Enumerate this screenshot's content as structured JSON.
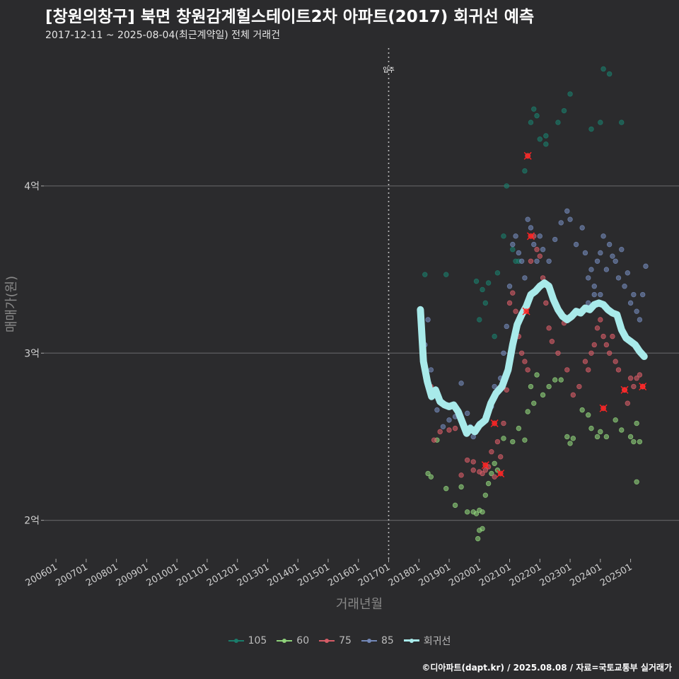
{
  "title": "[창원의창구] 북면 창원감계힐스테이트2차 아파트(2017) 회귀선 예측",
  "subtitle": "2017-12-11 ~ 2025-08-04(최근계약일) 전체 거래건",
  "footer": "©디아파트(dapt.kr) / 2025.08.08 / 자료=국토교통부 실거래가",
  "legend": [
    {
      "label": "105",
      "color": "#1a7d6b"
    },
    {
      "label": "60",
      "color": "#8fd27a"
    },
    {
      "label": "75",
      "color": "#d65c66"
    },
    {
      "label": "85",
      "color": "#7388b8"
    },
    {
      "label": "회귀선",
      "color": "#a8eaea"
    }
  ],
  "chart_data": {
    "type": "scatter",
    "title": "[창원의창구] 북면 창원감계힐스테이트2차 아파트(2017) 회귀선 예측",
    "xlabel": "거래년월",
    "ylabel": "매매가(원)",
    "x_ticks": [
      "200601",
      "200701",
      "200801",
      "200901",
      "201001",
      "201101",
      "201201",
      "201301",
      "201401",
      "201501",
      "201601",
      "201701",
      "201801",
      "201901",
      "202001",
      "202101",
      "202201",
      "202301",
      "202401",
      "202501"
    ],
    "y_ticks": [
      {
        "value": 2,
        "label": "2억"
      },
      {
        "value": 3,
        "label": "3억"
      },
      {
        "value": 4,
        "label": "4억"
      }
    ],
    "xlim": [
      2005.6,
      2026.6
    ],
    "ylim": [
      1.77,
      4.85
    ],
    "y_unit": "억원",
    "annotation": {
      "x": 2017.0,
      "label": "입주"
    },
    "regression": {
      "name": "회귀선",
      "color": "#a8eaea",
      "points": [
        [
          2018.05,
          3.26
        ],
        [
          2018.15,
          2.95
        ],
        [
          2018.28,
          2.83
        ],
        [
          2018.42,
          2.74
        ],
        [
          2018.55,
          2.78
        ],
        [
          2018.7,
          2.71
        ],
        [
          2018.85,
          2.69
        ],
        [
          2019.0,
          2.68
        ],
        [
          2019.15,
          2.69
        ],
        [
          2019.3,
          2.65
        ],
        [
          2019.45,
          2.58
        ],
        [
          2019.58,
          2.52
        ],
        [
          2019.7,
          2.55
        ],
        [
          2019.85,
          2.53
        ],
        [
          2020.0,
          2.57
        ],
        [
          2020.2,
          2.6
        ],
        [
          2020.38,
          2.7
        ],
        [
          2020.55,
          2.76
        ],
        [
          2020.75,
          2.8
        ],
        [
          2020.95,
          2.9
        ],
        [
          2021.1,
          3.05
        ],
        [
          2021.25,
          3.17
        ],
        [
          2021.4,
          3.23
        ],
        [
          2021.55,
          3.28
        ],
        [
          2021.7,
          3.35
        ],
        [
          2021.85,
          3.37
        ],
        [
          2022.0,
          3.4
        ],
        [
          2022.15,
          3.42
        ],
        [
          2022.3,
          3.4
        ],
        [
          2022.45,
          3.32
        ],
        [
          2022.6,
          3.26
        ],
        [
          2022.75,
          3.22
        ],
        [
          2022.9,
          3.2
        ],
        [
          2023.05,
          3.22
        ],
        [
          2023.2,
          3.25
        ],
        [
          2023.35,
          3.24
        ],
        [
          2023.5,
          3.27
        ],
        [
          2023.65,
          3.26
        ],
        [
          2023.8,
          3.29
        ],
        [
          2023.95,
          3.3
        ],
        [
          2024.1,
          3.29
        ],
        [
          2024.25,
          3.26
        ],
        [
          2024.4,
          3.24
        ],
        [
          2024.55,
          3.23
        ],
        [
          2024.7,
          3.14
        ],
        [
          2024.85,
          3.09
        ],
        [
          2025.0,
          3.07
        ],
        [
          2025.15,
          3.05
        ],
        [
          2025.3,
          3.01
        ],
        [
          2025.45,
          2.98
        ]
      ]
    },
    "series": [
      {
        "name": "105",
        "color": "#1a7d6b",
        "points": [
          [
            2018.2,
            3.47
          ],
          [
            2018.9,
            3.47
          ],
          [
            2019.9,
            3.43
          ],
          [
            2020.1,
            3.38
          ],
          [
            2020.3,
            3.42
          ],
          [
            2020.6,
            3.48
          ],
          [
            2020.8,
            3.7
          ],
          [
            2020.9,
            4.0
          ],
          [
            2021.3,
            3.55
          ],
          [
            2021.5,
            4.09
          ],
          [
            2021.6,
            4.18
          ],
          [
            2021.7,
            4.38
          ],
          [
            2021.8,
            4.46
          ],
          [
            2021.9,
            4.42
          ],
          [
            2022.0,
            4.28
          ],
          [
            2022.2,
            4.3
          ],
          [
            2022.6,
            4.38
          ],
          [
            2022.8,
            4.45
          ],
          [
            2023.0,
            4.55
          ],
          [
            2023.7,
            4.34
          ],
          [
            2024.0,
            4.38
          ],
          [
            2024.1,
            4.7
          ],
          [
            2024.3,
            4.67
          ],
          [
            2024.7,
            4.38
          ],
          [
            2020.2,
            3.3
          ],
          [
            2020.0,
            3.2
          ],
          [
            2020.5,
            3.1
          ],
          [
            2021.1,
            3.62
          ],
          [
            2021.2,
            3.55
          ],
          [
            2022.2,
            4.25
          ]
        ]
      },
      {
        "name": "60",
        "color": "#8fd27a",
        "points": [
          [
            2018.3,
            2.28
          ],
          [
            2018.4,
            2.26
          ],
          [
            2018.6,
            2.48
          ],
          [
            2018.9,
            2.19
          ],
          [
            2019.2,
            2.09
          ],
          [
            2019.6,
            2.05
          ],
          [
            2019.8,
            2.05
          ],
          [
            2019.9,
            2.04
          ],
          [
            2020.0,
            2.06
          ],
          [
            2020.1,
            2.05
          ],
          [
            2020.0,
            1.94
          ],
          [
            2020.1,
            1.95
          ],
          [
            2019.95,
            1.89
          ],
          [
            2020.2,
            2.15
          ],
          [
            2020.3,
            2.22
          ],
          [
            2020.4,
            2.28
          ],
          [
            2020.6,
            2.3
          ],
          [
            2020.8,
            2.49
          ],
          [
            2021.1,
            2.47
          ],
          [
            2021.3,
            2.55
          ],
          [
            2021.5,
            2.48
          ],
          [
            2021.7,
            2.8
          ],
          [
            2021.9,
            2.87
          ],
          [
            2021.6,
            2.65
          ],
          [
            2021.8,
            2.7
          ],
          [
            2022.1,
            2.75
          ],
          [
            2022.3,
            2.8
          ],
          [
            2022.5,
            2.84
          ],
          [
            2022.7,
            2.84
          ],
          [
            2022.9,
            2.5
          ],
          [
            2023.0,
            2.46
          ],
          [
            2023.1,
            2.49
          ],
          [
            2023.4,
            2.66
          ],
          [
            2023.6,
            2.63
          ],
          [
            2023.7,
            2.55
          ],
          [
            2023.9,
            2.5
          ],
          [
            2024.0,
            2.53
          ],
          [
            2024.2,
            2.5
          ],
          [
            2024.5,
            2.6
          ],
          [
            2024.7,
            2.54
          ],
          [
            2025.0,
            2.5
          ],
          [
            2025.1,
            2.47
          ],
          [
            2025.2,
            2.58
          ],
          [
            2025.3,
            2.47
          ],
          [
            2025.2,
            2.23
          ],
          [
            2020.5,
            2.34
          ],
          [
            2019.4,
            2.2
          ]
        ]
      },
      {
        "name": "75",
        "color": "#d65c66",
        "points": [
          [
            2018.5,
            2.48
          ],
          [
            2018.7,
            2.53
          ],
          [
            2019.0,
            2.54
          ],
          [
            2019.2,
            2.55
          ],
          [
            2019.4,
            2.27
          ],
          [
            2019.6,
            2.36
          ],
          [
            2019.8,
            2.35
          ],
          [
            2020.0,
            2.29
          ],
          [
            2020.1,
            2.28
          ],
          [
            2020.2,
            2.3
          ],
          [
            2020.3,
            2.32
          ],
          [
            2020.4,
            2.41
          ],
          [
            2020.6,
            2.47
          ],
          [
            2020.8,
            2.58
          ],
          [
            2020.9,
            2.78
          ],
          [
            2021.0,
            3.3
          ],
          [
            2021.1,
            3.36
          ],
          [
            2021.2,
            3.25
          ],
          [
            2021.3,
            3.1
          ],
          [
            2021.4,
            3.0
          ],
          [
            2021.5,
            2.95
          ],
          [
            2021.6,
            2.9
          ],
          [
            2021.7,
            3.55
          ],
          [
            2021.8,
            3.7
          ],
          [
            2021.9,
            3.62
          ],
          [
            2022.0,
            3.58
          ],
          [
            2022.1,
            3.45
          ],
          [
            2022.2,
            3.3
          ],
          [
            2022.3,
            3.15
          ],
          [
            2022.4,
            3.07
          ],
          [
            2022.6,
            3.0
          ],
          [
            2022.8,
            3.18
          ],
          [
            2022.9,
            2.9
          ],
          [
            2023.1,
            2.75
          ],
          [
            2023.3,
            2.8
          ],
          [
            2023.5,
            2.95
          ],
          [
            2023.6,
            2.9
          ],
          [
            2023.7,
            3.0
          ],
          [
            2023.8,
            3.05
          ],
          [
            2023.9,
            3.15
          ],
          [
            2024.0,
            3.2
          ],
          [
            2024.1,
            3.1
          ],
          [
            2024.2,
            3.05
          ],
          [
            2024.3,
            3.0
          ],
          [
            2024.4,
            3.1
          ],
          [
            2024.5,
            2.95
          ],
          [
            2024.6,
            2.9
          ],
          [
            2024.8,
            2.78
          ],
          [
            2024.9,
            2.7
          ],
          [
            2025.0,
            2.85
          ],
          [
            2025.1,
            2.8
          ],
          [
            2025.2,
            2.85
          ],
          [
            2025.3,
            2.87
          ],
          [
            2025.4,
            2.8
          ],
          [
            2020.5,
            2.26
          ],
          [
            2020.7,
            2.38
          ],
          [
            2019.8,
            2.3
          ],
          [
            2018.4,
            2.8
          ]
        ]
      },
      {
        "name": "85",
        "color": "#7388b8",
        "points": [
          [
            2018.3,
            3.2
          ],
          [
            2018.4,
            2.9
          ],
          [
            2018.2,
            3.05
          ],
          [
            2018.6,
            2.66
          ],
          [
            2018.8,
            2.56
          ],
          [
            2019.0,
            2.6
          ],
          [
            2019.2,
            2.62
          ],
          [
            2019.4,
            2.6
          ],
          [
            2019.6,
            2.64
          ],
          [
            2019.7,
            2.56
          ],
          [
            2019.9,
            2.55
          ],
          [
            2020.0,
            2.58
          ],
          [
            2020.2,
            2.62
          ],
          [
            2020.4,
            2.68
          ],
          [
            2020.5,
            2.8
          ],
          [
            2020.7,
            2.85
          ],
          [
            2020.8,
            3.0
          ],
          [
            2020.9,
            3.16
          ],
          [
            2021.0,
            3.4
          ],
          [
            2021.1,
            3.65
          ],
          [
            2021.2,
            3.7
          ],
          [
            2021.3,
            3.6
          ],
          [
            2021.4,
            3.55
          ],
          [
            2021.5,
            3.45
          ],
          [
            2021.6,
            3.8
          ],
          [
            2021.7,
            3.75
          ],
          [
            2021.8,
            3.65
          ],
          [
            2021.9,
            3.55
          ],
          [
            2022.0,
            3.7
          ],
          [
            2022.1,
            3.62
          ],
          [
            2022.3,
            3.55
          ],
          [
            2022.5,
            3.68
          ],
          [
            2022.7,
            3.78
          ],
          [
            2022.9,
            3.85
          ],
          [
            2023.0,
            3.8
          ],
          [
            2023.2,
            3.65
          ],
          [
            2023.4,
            3.75
          ],
          [
            2023.5,
            3.6
          ],
          [
            2023.6,
            3.45
          ],
          [
            2023.7,
            3.5
          ],
          [
            2023.8,
            3.4
          ],
          [
            2023.9,
            3.55
          ],
          [
            2024.0,
            3.6
          ],
          [
            2024.1,
            3.7
          ],
          [
            2024.2,
            3.5
          ],
          [
            2024.3,
            3.65
          ],
          [
            2024.4,
            3.58
          ],
          [
            2024.5,
            3.55
          ],
          [
            2024.6,
            3.45
          ],
          [
            2024.7,
            3.62
          ],
          [
            2024.8,
            3.4
          ],
          [
            2024.9,
            3.48
          ],
          [
            2025.0,
            3.3
          ],
          [
            2025.1,
            3.35
          ],
          [
            2025.2,
            3.25
          ],
          [
            2025.3,
            3.2
          ],
          [
            2025.4,
            3.35
          ],
          [
            2025.5,
            3.52
          ],
          [
            2019.4,
            2.82
          ],
          [
            2019.8,
            2.5
          ],
          [
            2023.6,
            3.3
          ],
          [
            2023.8,
            3.35
          ],
          [
            2024.0,
            3.35
          ]
        ]
      }
    ],
    "highlights": [
      [
        2021.6,
        4.18
      ],
      [
        2021.7,
        3.7
      ],
      [
        2021.55,
        3.25
      ],
      [
        2020.2,
        2.33
      ],
      [
        2020.7,
        2.28
      ],
      [
        2020.5,
        2.58
      ],
      [
        2024.1,
        2.67
      ],
      [
        2024.8,
        2.78
      ],
      [
        2025.4,
        2.8
      ]
    ]
  }
}
